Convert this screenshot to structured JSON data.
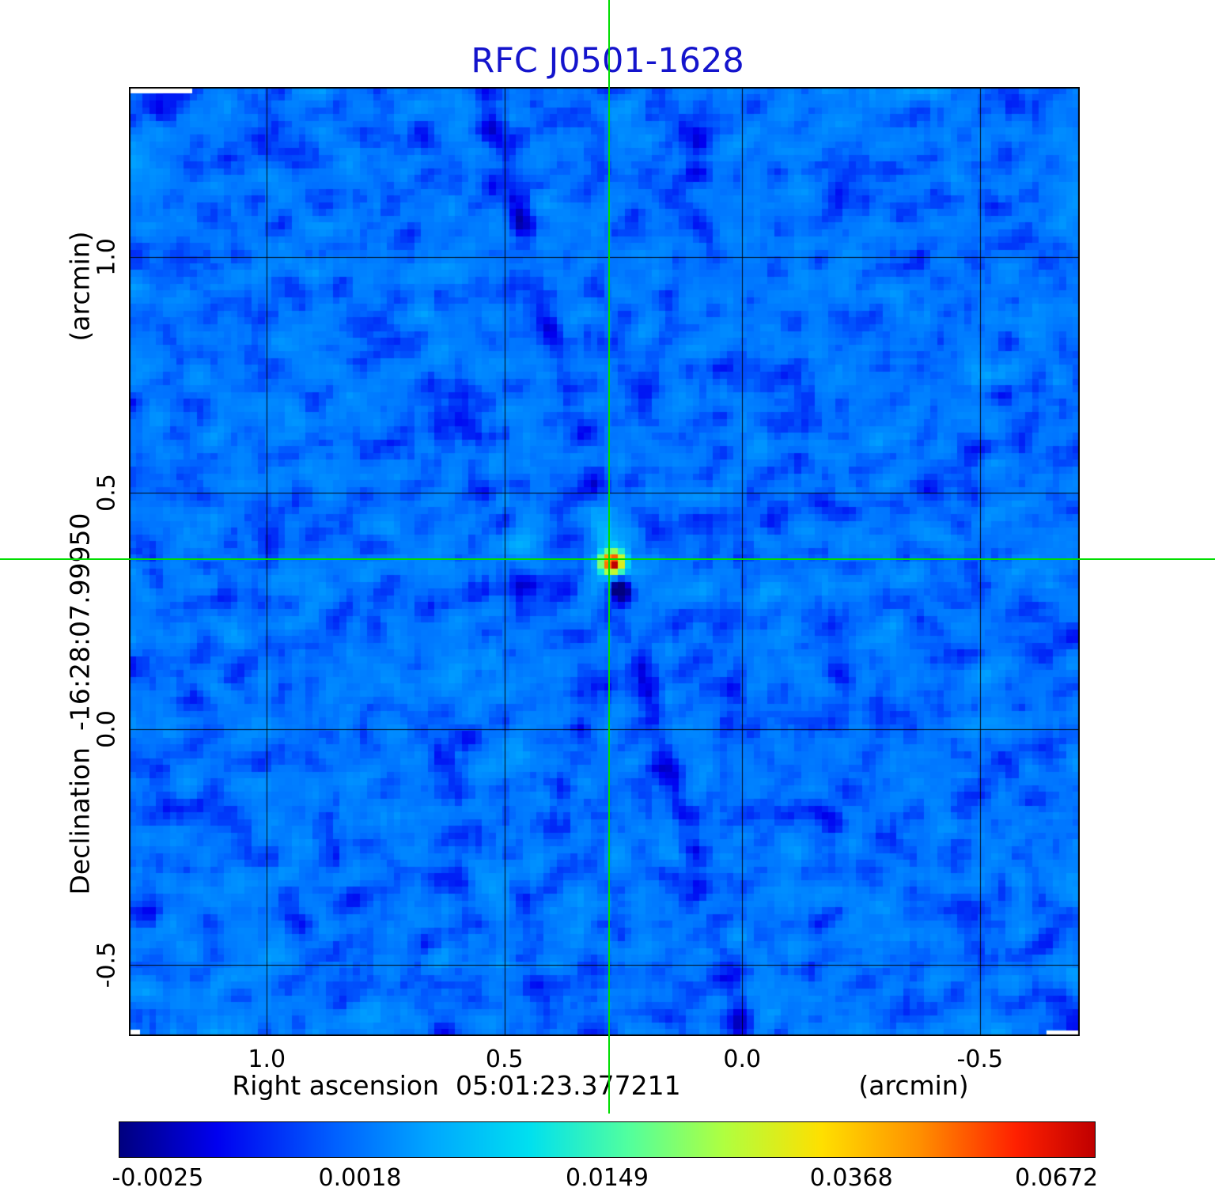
{
  "title": "RFC J0501-1628",
  "colors": {
    "title": "#1414cc",
    "axis_text": "#000000"
  },
  "plot": {
    "x_axis": {
      "label": "Right ascension  05:01:23.377211",
      "unit": "(arcmin)",
      "ticks": [
        "1.0",
        "0.5",
        "0.0",
        "-0.5"
      ]
    },
    "y_axis": {
      "label": "Declination  -16:28:07.99950",
      "unit": "(arcmin)",
      "ticks": [
        "1.0",
        "0.5",
        "0.0",
        "-0.5"
      ]
    }
  },
  "colorbar": {
    "ticks": [
      "-0.0025",
      "0.0018",
      "0.0149",
      "0.0368",
      "0.0672"
    ]
  },
  "chart_data": {
    "type": "heatmap",
    "title": "RFC J0501-1628",
    "xlabel": "Right ascension 05:01:23.377211 (arcmin)",
    "ylabel": "Declination -16:28:07.99950 (arcmin)",
    "x_range_arcmin": [
      1.29,
      -0.71
    ],
    "y_range_arcmin": [
      1.36,
      -0.65
    ],
    "x_ticks": [
      1.0,
      0.5,
      0.0,
      -0.5
    ],
    "y_ticks": [
      1.0,
      0.5,
      0.0,
      -0.5
    ],
    "grid": true,
    "source": {
      "name": "RFC J0501-1628",
      "ra_hms": "05:01:23.377211",
      "dec_dms": "-16:28:07.99950",
      "x_arcmin": 0.28,
      "y_arcmin": 0.36,
      "peak_value_jy": 0.0672
    },
    "background_level_jy": 0.002,
    "intensity_anchors": {
      "p": [
        0,
        0.04,
        0.247,
        0.5,
        0.75,
        0.96,
        1
      ],
      "v": [
        -0.004,
        -0.0025,
        0.0018,
        0.0149,
        0.0368,
        0.0672,
        0.075
      ]
    },
    "colorbar_tick_values": [
      -0.0025,
      0.0018,
      0.0149,
      0.0368,
      0.0672
    ],
    "colormap_stops": [
      {
        "p": 0.0,
        "c": "#000080"
      },
      {
        "p": 0.1,
        "c": "#0000f0"
      },
      {
        "p": 0.22,
        "c": "#0060ff"
      },
      {
        "p": 0.32,
        "c": "#00a8ff"
      },
      {
        "p": 0.42,
        "c": "#00e0f0"
      },
      {
        "p": 0.52,
        "c": "#50ffa0"
      },
      {
        "p": 0.62,
        "c": "#b0ff40"
      },
      {
        "p": 0.72,
        "c": "#ffe000"
      },
      {
        "p": 0.82,
        "c": "#ff9000"
      },
      {
        "p": 0.92,
        "c": "#ff2000"
      },
      {
        "p": 1.0,
        "c": "#c00000"
      }
    ],
    "crosshair_color": "#00dd00",
    "legend": "none"
  }
}
